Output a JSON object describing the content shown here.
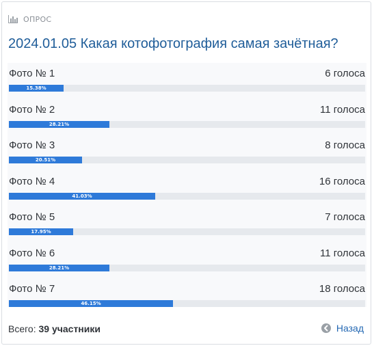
{
  "header": {
    "label": "ОПРОС",
    "icon": "bar-chart-icon"
  },
  "poll": {
    "title": "2024.01.05 Какая котофотография самая зачётная?"
  },
  "options": [
    {
      "label": "Фото № 1",
      "votes": "6 голоса",
      "percent": "15.38%",
      "fraction": 0.1538
    },
    {
      "label": "Фото № 2",
      "votes": "11 голоса",
      "percent": "28.21%",
      "fraction": 0.2821
    },
    {
      "label": "Фото № 3",
      "votes": "8 голоса",
      "percent": "20.51%",
      "fraction": 0.2051
    },
    {
      "label": "Фото № 4",
      "votes": "16 голоса",
      "percent": "41.03%",
      "fraction": 0.4103
    },
    {
      "label": "Фото № 5",
      "votes": "7 голоса",
      "percent": "17.95%",
      "fraction": 0.1795
    },
    {
      "label": "Фото № 6",
      "votes": "11 голоса",
      "percent": "28.21%",
      "fraction": 0.2821
    },
    {
      "label": "Фото № 7",
      "votes": "18 голоса",
      "percent": "46.15%",
      "fraction": 0.4615
    }
  ],
  "footer": {
    "total_label": "Всего:",
    "total_value": "39 участники",
    "back_label": "Назад",
    "back_icon": "arrow-left-circle-icon"
  },
  "colors": {
    "bar": "#2e7ad9",
    "track": "#e6e9ed",
    "title": "#1f5d99",
    "link": "#2468b3"
  }
}
